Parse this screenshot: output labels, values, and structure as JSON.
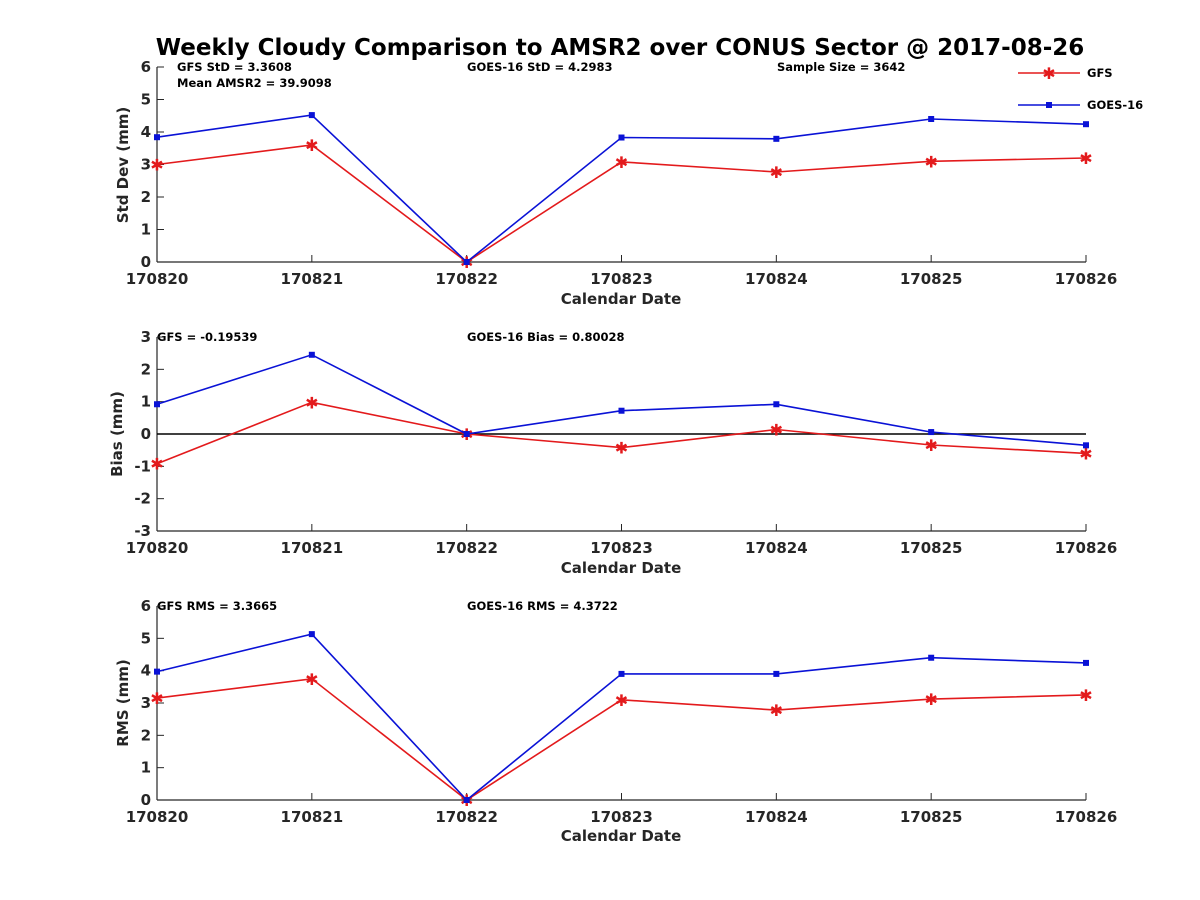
{
  "figure": {
    "title": "Weekly Cloudy Comparison to AMSR2 over CONUS Sector @ 2017-08-26",
    "colors": {
      "GFS": "#e31a1c",
      "GOES-16": "#0a12d6",
      "zero_line": "#000000",
      "axis": "#262626"
    }
  },
  "legend": {
    "placement": "top-right",
    "entries": [
      {
        "name": "GFS",
        "color": "#e31a1c",
        "marker": "asterisk"
      },
      {
        "name": "GOES-16",
        "color": "#0a12d6",
        "marker": "square"
      }
    ]
  },
  "chart_data": [
    {
      "type": "line",
      "panel": "std",
      "xlabel": "Calendar Date",
      "ylabel": "Std Dev (mm)",
      "categories": [
        "170820",
        "170821",
        "170822",
        "170823",
        "170824",
        "170825",
        "170826"
      ],
      "ylim": [
        0,
        6
      ],
      "yticks": [
        0,
        1,
        2,
        3,
        4,
        5,
        6
      ],
      "grid": false,
      "annotations": {
        "gfs": "GFS StD = 3.3608",
        "goes": "GOES-16 StD = 4.2983",
        "sample": "Sample Size = 3642",
        "mean": "Mean AMSR2 = 39.9098"
      },
      "series": [
        {
          "name": "GFS",
          "values": [
            3.0,
            3.6,
            0.0,
            3.08,
            2.77,
            3.1,
            3.2
          ]
        },
        {
          "name": "GOES-16",
          "values": [
            3.84,
            4.52,
            0.0,
            3.83,
            3.79,
            4.4,
            4.24
          ]
        }
      ]
    },
    {
      "type": "line",
      "panel": "bias",
      "xlabel": "Calendar Date",
      "ylabel": "Bias (mm)",
      "categories": [
        "170820",
        "170821",
        "170822",
        "170823",
        "170824",
        "170825",
        "170826"
      ],
      "ylim": [
        -3,
        3
      ],
      "yticks": [
        -3,
        -2,
        -1,
        0,
        1,
        2,
        3
      ],
      "grid": false,
      "zero_line": true,
      "annotations": {
        "gfs": "GFS = -0.19539",
        "goes": "GOES-16 Bias  = 0.80028"
      },
      "series": [
        {
          "name": "GFS",
          "values": [
            -0.92,
            0.98,
            0.0,
            -0.42,
            0.14,
            -0.34,
            -0.6
          ]
        },
        {
          "name": "GOES-16",
          "values": [
            0.92,
            2.45,
            0.0,
            0.72,
            0.92,
            0.06,
            -0.35
          ]
        }
      ]
    },
    {
      "type": "line",
      "panel": "rms",
      "xlabel": "Calendar Date",
      "ylabel": "RMS (mm)",
      "categories": [
        "170820",
        "170821",
        "170822",
        "170823",
        "170824",
        "170825",
        "170826"
      ],
      "ylim": [
        0,
        6
      ],
      "yticks": [
        0,
        1,
        2,
        3,
        4,
        5,
        6
      ],
      "grid": false,
      "annotations": {
        "gfs": "GFS RMS = 3.3665",
        "goes": "GOES-16 RMS = 4.3722"
      },
      "series": [
        {
          "name": "GFS",
          "values": [
            3.15,
            3.75,
            0.0,
            3.1,
            2.78,
            3.12,
            3.25
          ]
        },
        {
          "name": "GOES-16",
          "values": [
            3.97,
            5.13,
            0.0,
            3.9,
            3.9,
            4.4,
            4.24
          ]
        }
      ]
    }
  ]
}
